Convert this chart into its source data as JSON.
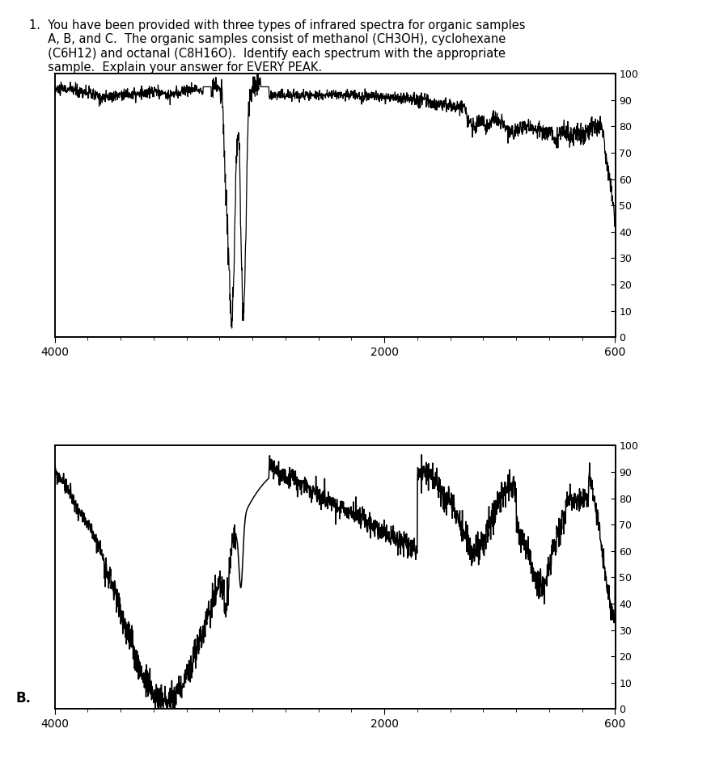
{
  "ylabel_ticks": [
    0,
    10,
    20,
    30,
    40,
    50,
    60,
    70,
    80,
    90,
    100
  ],
  "xmin": 4000,
  "xmax": 600,
  "ymin": 0,
  "ymax": 100,
  "xticks": [
    4000,
    2000,
    600
  ],
  "background_color": "#ffffff",
  "line_color": "#000000",
  "title_line1": "1.  You have been provided with three types of infrared spectra for organic samples",
  "title_line2": "     A, B, and C.  The organic samples consist of methanol (CH3OH), cyclohexane",
  "title_line3": "     (C6H12) and octanal (C8H16O).  Identify each spectrum with the appropriate",
  "title_line4": "     sample.  Explain your answer for EVERY PEAK.",
  "label_B": "B."
}
